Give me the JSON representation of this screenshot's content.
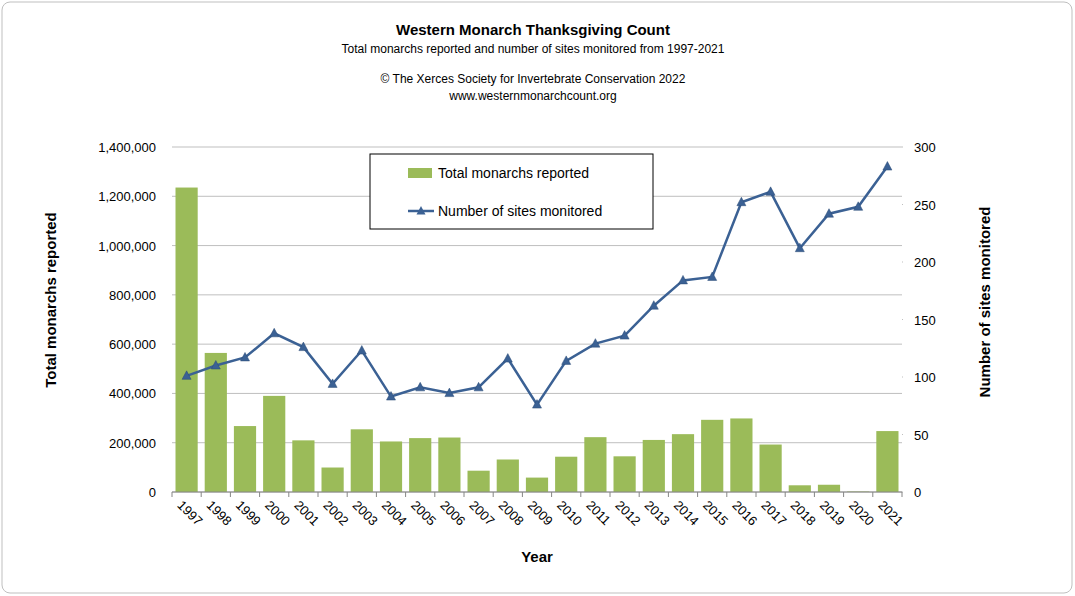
{
  "chart_data": {
    "type": "bar",
    "title": "Western Monarch Thanksgiving Count",
    "subtitle": "Total monarchs reported and number of sites monitored from 1997-2021",
    "annotations": [
      "© The Xerces Society for Invertebrate Conservation 2022",
      "www.westernmonarchcount.org"
    ],
    "x_label": "Year",
    "y_label": "Total monarchs reported",
    "y2_label": "Number of sites monitored",
    "categories": [
      "1997",
      "1998",
      "1999",
      "2000",
      "2001",
      "2002",
      "2003",
      "2004",
      "2005",
      "2006",
      "2007",
      "2008",
      "2009",
      "2010",
      "2011",
      "2012",
      "2013",
      "2014",
      "2015",
      "2016",
      "2017",
      "2018",
      "2019",
      "2020",
      "2021"
    ],
    "series": [
      {
        "name": "Total monarchs reported",
        "type": "bar",
        "color": "#9bbb59",
        "values": [
          1235490,
          564349,
          267574,
          390057,
          209570,
          99353,
          254378,
          205085,
          218679,
          221058,
          86437,
          131889,
          58468,
          143204,
          222525,
          144812,
          211275,
          234731,
          292888,
          298464,
          192624,
          27218,
          29418,
          1899,
          247237
        ]
      },
      {
        "name": "Number of sites monitored",
        "type": "line",
        "axis": "y2",
        "color": "#3b6194",
        "marker": "triangle",
        "line_style": "solid",
        "values": [
          101,
          110,
          117,
          138,
          126,
          94,
          123,
          83,
          91,
          86,
          91,
          116,
          76,
          114,
          129,
          136,
          162,
          184,
          187,
          252,
          261,
          212,
          242,
          248,
          283
        ]
      }
    ],
    "ylim": [
      0,
      1400000
    ],
    "yticks": [
      0,
      {
        "value": 200000,
        "label": "200,000"
      },
      {
        "value": 400000,
        "label": "400,000"
      },
      {
        "value": 600000,
        "label": "600,000"
      },
      {
        "value": 800000,
        "label": "800,000"
      },
      {
        "value": 1000000,
        "label": "1,000,000"
      },
      {
        "value": 1200000,
        "label": "1,200,000"
      },
      {
        "value": 1400000,
        "label": "1,400,000"
      }
    ],
    "y2lim": [
      0,
      300
    ],
    "y2ticks": [
      0,
      50,
      100,
      150,
      200,
      250,
      300
    ],
    "grid": true,
    "legend": "top"
  }
}
